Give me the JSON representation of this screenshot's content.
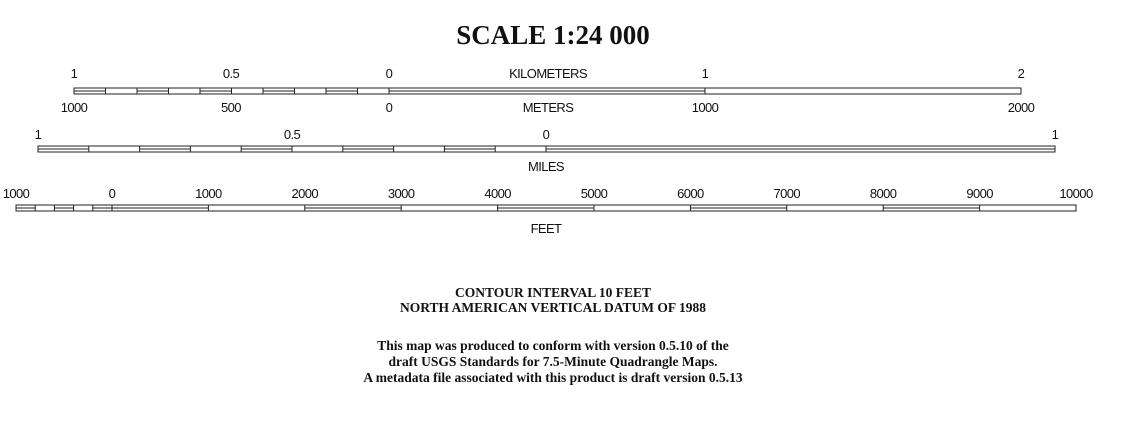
{
  "title": "SCALE 1:24 000",
  "kilometer_scale": {
    "labels": [
      "1",
      "0.5",
      "0",
      "1",
      "2"
    ],
    "unit": "KILOMETERS"
  },
  "meter_scale": {
    "labels": [
      "1000",
      "500",
      "0",
      "1000",
      "2000"
    ],
    "unit": "METERS"
  },
  "mile_scale": {
    "labels": [
      "1",
      "0.5",
      "0",
      "1"
    ],
    "unit": "MILES"
  },
  "feet_scale": {
    "labels": [
      "1000",
      "0",
      "1000",
      "2000",
      "3000",
      "4000",
      "5000",
      "6000",
      "7000",
      "8000",
      "9000",
      "10000"
    ],
    "unit": "FEET"
  },
  "notes": [
    "CONTOUR INTERVAL 10 FEET",
    "NORTH AMERICAN VERTICAL DATUM OF 1988"
  ],
  "statement": [
    "This map was produced to conform with version 0.5.10 of the",
    "draft USGS Standards for 7.5-Minute Quadrangle Maps.",
    "A metadata file associated with this product is draft version 0.5.13"
  ]
}
